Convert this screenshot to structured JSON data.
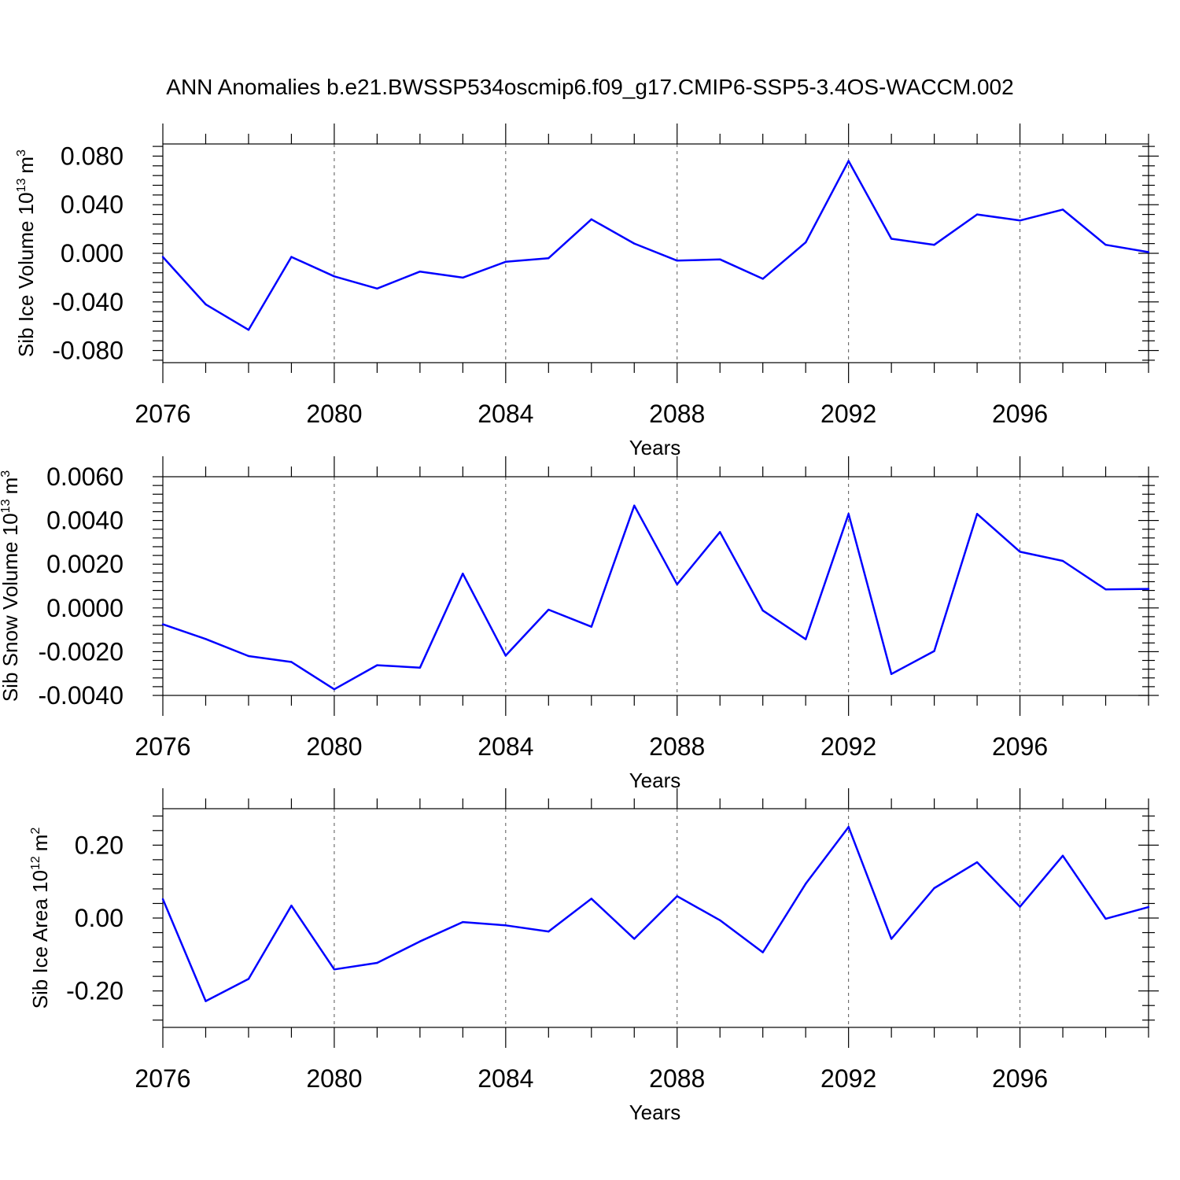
{
  "title": "ANN Anomalies b.e21.BWSSP534oscmip6.f09_g17.CMIP6-SSP5-3.4OS-WACCM.002",
  "line_color": "#0000ff",
  "chart_data": [
    {
      "type": "line",
      "ylabel": "Sib Ice Volume 10",
      "ylabel_exp": "13",
      "ylabel_unit": "m",
      "ylabel_unit_exp": "3",
      "xlabel": "Years",
      "xlim": [
        2076,
        2099
      ],
      "ylim": [
        -0.09,
        0.09
      ],
      "x_ticks": [
        2076,
        2080,
        2084,
        2088,
        2092,
        2096
      ],
      "x_tick_labels": [
        "2076",
        "2080",
        "2084",
        "2088",
        "2092",
        "2096"
      ],
      "y_ticks": [
        -0.08,
        -0.04,
        0.0,
        0.04,
        0.08
      ],
      "y_tick_labels": [
        "-0.080",
        "-0.040",
        "0.000",
        "0.040",
        "0.080"
      ],
      "grid": "x-major-dashed",
      "series": [
        {
          "x": [
            2076,
            2077,
            2078,
            2079,
            2080,
            2081,
            2082,
            2083,
            2084,
            2085,
            2086,
            2087,
            2088,
            2089,
            2090,
            2091,
            2092,
            2093,
            2094,
            2095,
            2096,
            2097,
            2098,
            2099
          ],
          "values": [
            -0.003,
            -0.042,
            -0.063,
            -0.003,
            -0.019,
            -0.029,
            -0.015,
            -0.02,
            -0.007,
            -0.004,
            0.028,
            0.008,
            -0.006,
            -0.005,
            -0.021,
            0.009,
            0.076,
            0.012,
            0.007,
            0.032,
            0.027,
            0.036,
            0.007,
            0.001
          ]
        }
      ]
    },
    {
      "type": "line",
      "ylabel": "Sib Snow Volume 10",
      "ylabel_exp": "13",
      "ylabel_unit": "m",
      "ylabel_unit_exp": "3",
      "xlabel": "Years",
      "xlim": [
        2076,
        2099
      ],
      "ylim": [
        -0.004,
        0.006
      ],
      "x_ticks": [
        2076,
        2080,
        2084,
        2088,
        2092,
        2096
      ],
      "x_tick_labels": [
        "2076",
        "2080",
        "2084",
        "2088",
        "2092",
        "2096"
      ],
      "y_ticks": [
        -0.004,
        -0.002,
        0.0,
        0.002,
        0.004,
        0.006
      ],
      "y_tick_labels": [
        "-0.0040",
        "-0.0020",
        "0.0000",
        "0.0020",
        "0.0040",
        "0.0060"
      ],
      "grid": "x-major-dashed",
      "series": [
        {
          "x": [
            2076,
            2077,
            2078,
            2079,
            2080,
            2081,
            2082,
            2083,
            2084,
            2085,
            2086,
            2087,
            2088,
            2089,
            2090,
            2091,
            2092,
            2093,
            2094,
            2095,
            2096,
            2097,
            2098,
            2099
          ],
          "values": [
            -0.00075,
            -0.00142,
            -0.0022,
            -0.00247,
            -0.00372,
            -0.00262,
            -0.00273,
            0.00157,
            -0.00218,
            -8e-05,
            -0.00086,
            0.00468,
            0.00108,
            0.00347,
            -0.00012,
            -0.00143,
            0.0043,
            -0.00302,
            -0.00197,
            0.0043,
            0.00257,
            0.00215,
            0.00085,
            0.00087
          ]
        }
      ]
    },
    {
      "type": "line",
      "ylabel": "Sib Ice Area 10",
      "ylabel_exp": "12",
      "ylabel_unit": "m",
      "ylabel_unit_exp": "2",
      "xlabel": "Years",
      "xlim": [
        2076,
        2099
      ],
      "ylim": [
        -0.3,
        0.3
      ],
      "x_ticks": [
        2076,
        2080,
        2084,
        2088,
        2092,
        2096
      ],
      "x_tick_labels": [
        "2076",
        "2080",
        "2084",
        "2088",
        "2092",
        "2096"
      ],
      "y_ticks": [
        -0.2,
        0.0,
        0.2
      ],
      "y_tick_labels": [
        "-0.20",
        "0.00",
        "0.20"
      ],
      "grid": "x-major-dashed",
      "series": [
        {
          "x": [
            2076,
            2077,
            2078,
            2079,
            2080,
            2081,
            2082,
            2083,
            2084,
            2085,
            2086,
            2087,
            2088,
            2089,
            2090,
            2091,
            2092,
            2093,
            2094,
            2095,
            2096,
            2097,
            2098,
            2099
          ],
          "values": [
            0.052,
            -0.228,
            -0.167,
            0.034,
            -0.141,
            -0.123,
            -0.064,
            -0.011,
            -0.02,
            -0.037,
            0.053,
            -0.057,
            0.06,
            -0.006,
            -0.094,
            0.094,
            0.25,
            -0.057,
            0.082,
            0.153,
            0.031,
            0.171,
            -0.002,
            0.03
          ]
        }
      ]
    }
  ]
}
